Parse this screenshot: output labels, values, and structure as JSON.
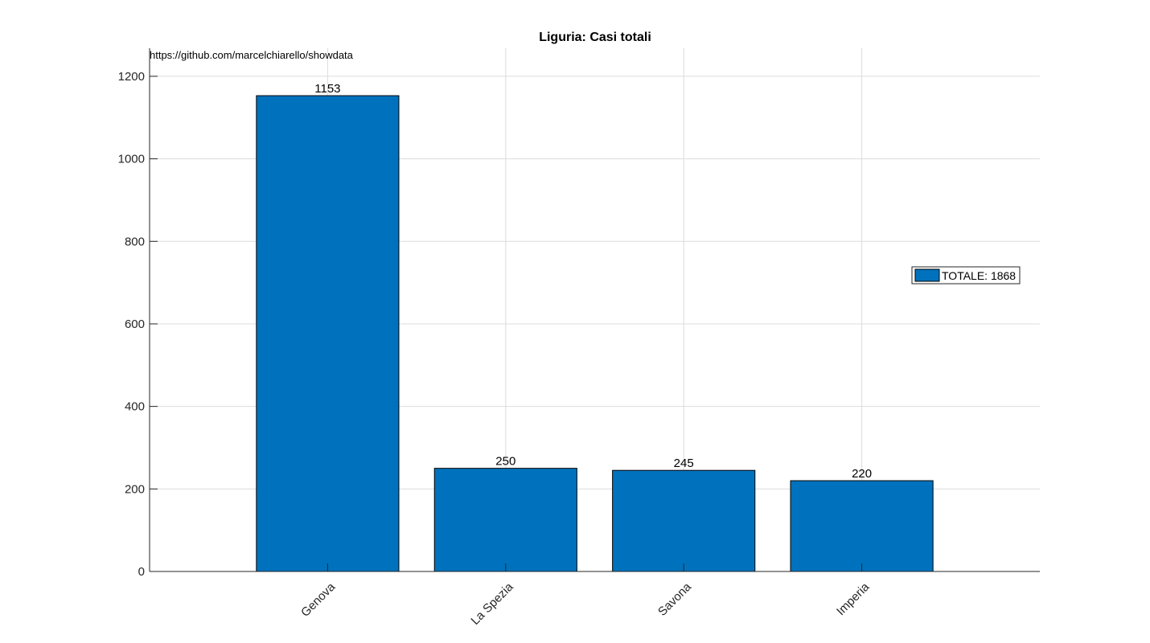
{
  "chart_data": {
    "type": "bar",
    "title": "Liguria: Casi totali",
    "annotation": "https://github.com/marcelchiarello/showdata",
    "categories": [
      "Genova",
      "La Spezia",
      "Savona",
      "Imperia"
    ],
    "values": [
      1153,
      250,
      245,
      220
    ],
    "data_labels": [
      "1153",
      "250",
      "245",
      "220"
    ],
    "yticks": [
      0,
      200,
      400,
      600,
      800,
      1000,
      1200
    ],
    "ylim": [
      0,
      1268
    ],
    "grid": true,
    "legend": {
      "label": "TOTALE: 1868",
      "placement": "right"
    },
    "colors": {
      "bar": "#0072BD",
      "bar_edge": "#000000",
      "grid": "#dcdcdc",
      "axis": "#262626"
    }
  }
}
